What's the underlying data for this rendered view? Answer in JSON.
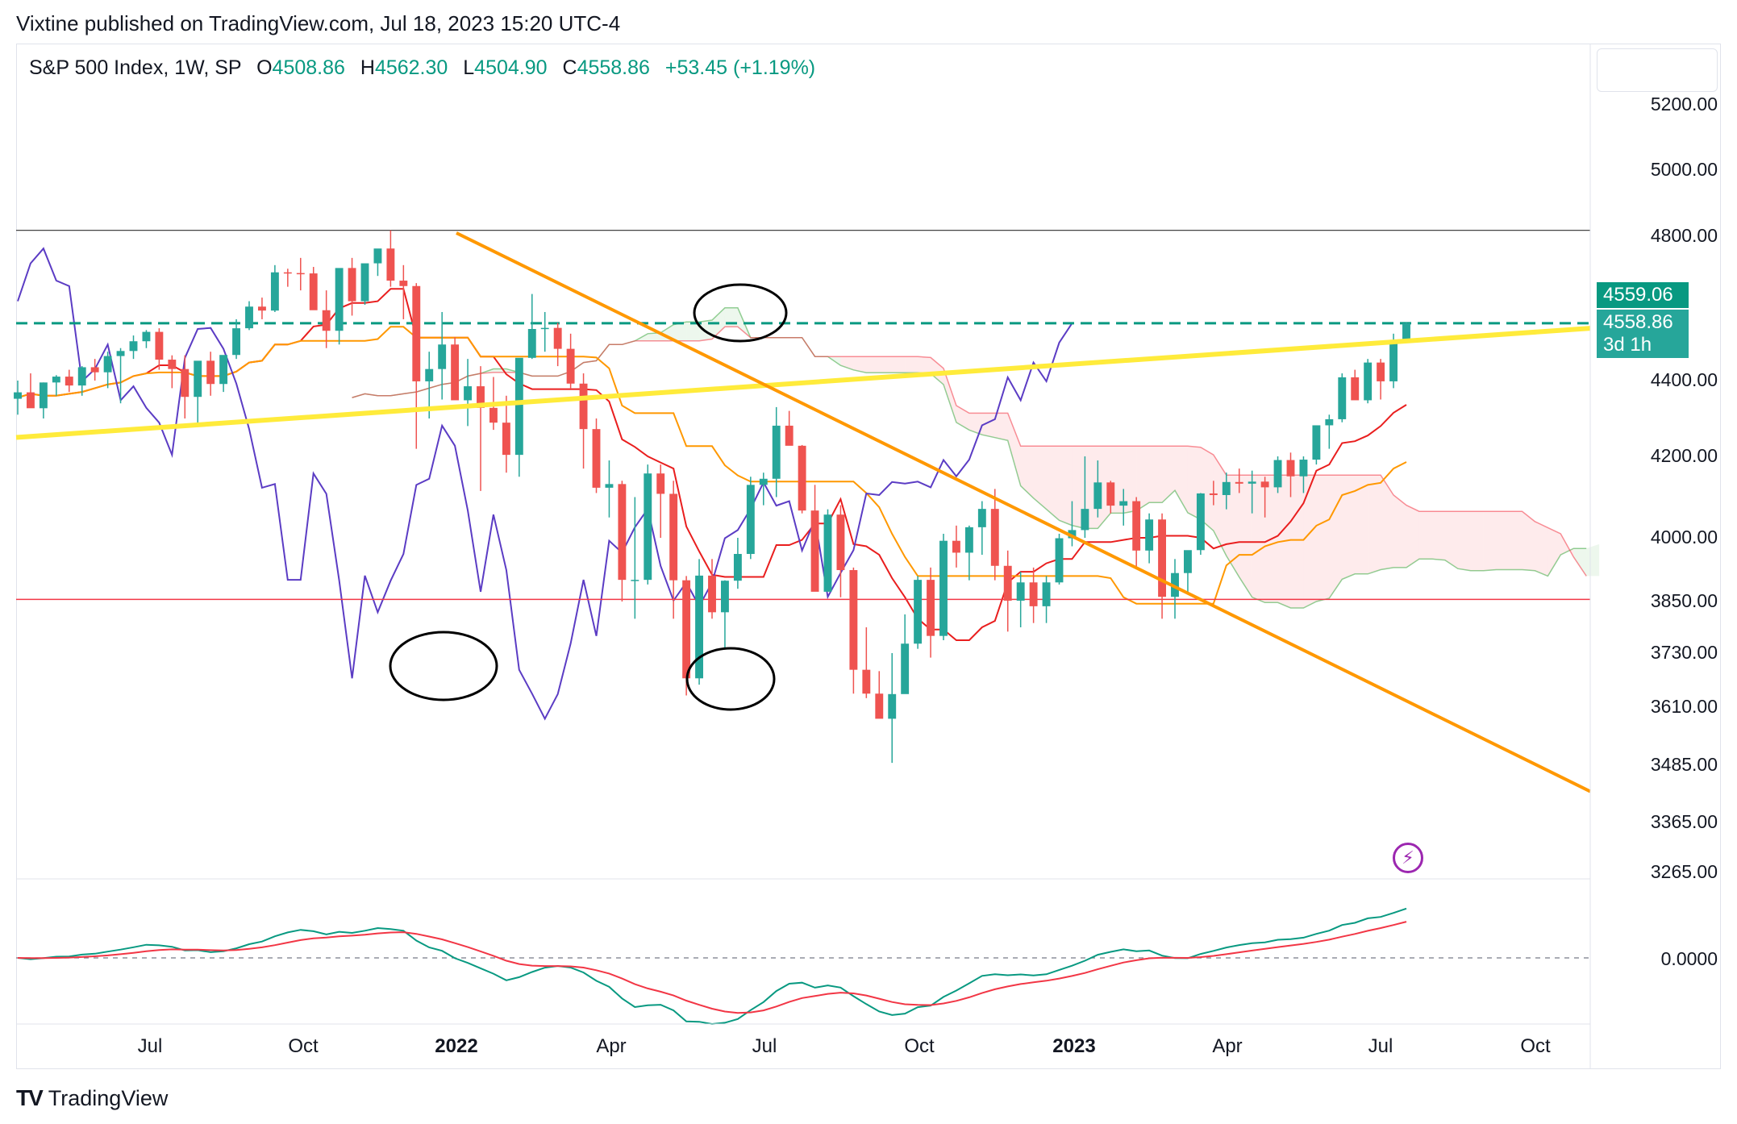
{
  "publisher_line": "Vixtine published on TradingView.com, Jul 18, 2023 15:20 UTC-4",
  "legend": {
    "symbol": "S&P 500 Index, 1W, SP",
    "o_label": "O",
    "o_value": "4508.86",
    "h_label": "H",
    "h_value": "4562.30",
    "l_label": "L",
    "l_value": "4504.90",
    "c_label": "C",
    "c_value": "4558.86",
    "change": "+53.45 (+1.19%)"
  },
  "price_axis": [
    "5200.00",
    "5000.00",
    "4800.00",
    "4400.00",
    "4200.00",
    "4000.00",
    "3850.00",
    "3730.00",
    "3610.00",
    "3485.00",
    "3365.00",
    "3265.00"
  ],
  "price_tags": {
    "high_tag": "4559.06",
    "last_price": "4558.86",
    "countdown": "3d 1h"
  },
  "oscillator_axis": [
    "0.0000"
  ],
  "time_axis": [
    {
      "label": "Jul",
      "bold": false
    },
    {
      "label": "Oct",
      "bold": false
    },
    {
      "label": "2022",
      "bold": true
    },
    {
      "label": "Apr",
      "bold": false
    },
    {
      "label": "Jul",
      "bold": false
    },
    {
      "label": "Oct",
      "bold": false
    },
    {
      "label": "2023",
      "bold": true
    },
    {
      "label": "Apr",
      "bold": false
    },
    {
      "label": "Jul",
      "bold": false
    },
    {
      "label": "Oct",
      "bold": false
    }
  ],
  "brand": "TradingView",
  "colors": {
    "up": "#26a69a",
    "down": "#ef5350",
    "tenkan": "#e91e1e",
    "kijun": "#ff9800",
    "lagging": "#5b3cc4",
    "trend_yellow": "#ffeb3b",
    "trend_orange": "#ff9800",
    "support_red": "#f23645",
    "macd": "#089981",
    "signal": "#f23645"
  },
  "chart_data": {
    "type": "candlestick",
    "timeframe": "1W",
    "price_range": [
      3265,
      5200
    ],
    "anchors": [
      "Jul 2021",
      "Oct 2021",
      "Jan 2022",
      "Apr 2022",
      "Jul 2022",
      "Oct 2022",
      "Jan 2023",
      "Apr 2023",
      "Jul 2023",
      "Oct 2023"
    ],
    "ohlc_weekly_approx": [
      [
        4352,
        4400,
        4310,
        4369
      ],
      [
        4369,
        4420,
        4340,
        4327
      ],
      [
        4327,
        4395,
        4300,
        4395
      ],
      [
        4395,
        4415,
        4360,
        4411
      ],
      [
        4411,
        4430,
        4370,
        4387
      ],
      [
        4387,
        4440,
        4360,
        4437
      ],
      [
        4437,
        4460,
        4400,
        4423
      ],
      [
        4423,
        4480,
        4380,
        4468
      ],
      [
        4468,
        4490,
        4340,
        4482
      ],
      [
        4482,
        4525,
        4460,
        4509
      ],
      [
        4509,
        4540,
        4490,
        4535
      ],
      [
        4535,
        4545,
        4430,
        4458
      ],
      [
        4458,
        4470,
        4380,
        4432
      ],
      [
        4432,
        4470,
        4300,
        4357
      ],
      [
        4357,
        4430,
        4280,
        4455
      ],
      [
        4455,
        4480,
        4360,
        4391
      ],
      [
        4391,
        4470,
        4370,
        4471
      ],
      [
        4471,
        4570,
        4460,
        4545
      ],
      [
        4545,
        4620,
        4540,
        4605
      ],
      [
        4605,
        4630,
        4570,
        4594
      ],
      [
        4594,
        4720,
        4590,
        4700
      ],
      [
        4700,
        4710,
        4660,
        4698
      ],
      [
        4698,
        4740,
        4650,
        4697
      ],
      [
        4697,
        4715,
        4600,
        4595
      ],
      [
        4595,
        4650,
        4490,
        4538
      ],
      [
        4538,
        4670,
        4500,
        4712
      ],
      [
        4712,
        4740,
        4580,
        4620
      ],
      [
        4620,
        4720,
        4610,
        4725
      ],
      [
        4725,
        4750,
        4690,
        4766
      ],
      [
        4766,
        4818,
        4660,
        4677
      ],
      [
        4677,
        4720,
        4570,
        4662
      ],
      [
        4662,
        4670,
        4220,
        4398
      ],
      [
        4398,
        4480,
        4300,
        4432
      ],
      [
        4432,
        4590,
        4350,
        4500
      ],
      [
        4500,
        4520,
        4400,
        4348
      ],
      [
        4348,
        4460,
        4280,
        4385
      ],
      [
        4385,
        4440,
        4115,
        4328
      ],
      [
        4328,
        4410,
        4270,
        4289
      ],
      [
        4289,
        4360,
        4160,
        4204
      ],
      [
        4204,
        4440,
        4150,
        4463
      ],
      [
        4463,
        4640,
        4460,
        4543
      ],
      [
        4543,
        4590,
        4480,
        4546
      ],
      [
        4546,
        4560,
        4440,
        4488
      ],
      [
        4488,
        4530,
        4380,
        4392
      ],
      [
        4392,
        4420,
        4170,
        4272
      ],
      [
        4272,
        4300,
        4110,
        4123
      ],
      [
        4123,
        4190,
        4050,
        4132
      ],
      [
        4132,
        4140,
        3850,
        3901
      ],
      [
        3901,
        4100,
        3810,
        3901
      ],
      [
        3901,
        4180,
        3890,
        4158
      ],
      [
        4158,
        4180,
        4000,
        4108
      ],
      [
        4108,
        4140,
        3810,
        3900
      ],
      [
        3900,
        3910,
        3636,
        3674
      ],
      [
        3674,
        3950,
        3660,
        3911
      ],
      [
        3911,
        3950,
        3810,
        3825
      ],
      [
        3825,
        3900,
        3740,
        3899
      ],
      [
        3899,
        4000,
        3880,
        3962
      ],
      [
        3962,
        4150,
        3950,
        4130
      ],
      [
        4130,
        4160,
        4080,
        4145
      ],
      [
        4145,
        4330,
        4100,
        4281
      ],
      [
        4281,
        4320,
        4260,
        4228
      ],
      [
        4228,
        4230,
        4060,
        4067
      ],
      [
        4067,
        4130,
        3910,
        3873
      ],
      [
        3873,
        4070,
        3880,
        4057
      ],
      [
        4057,
        4080,
        3860,
        3924
      ],
      [
        3924,
        3930,
        3640,
        3693
      ],
      [
        3693,
        3790,
        3630,
        3640
      ],
      [
        3640,
        3690,
        3590,
        3585
      ],
      [
        3585,
        3730,
        3490,
        3639
      ],
      [
        3639,
        3820,
        3670,
        3752
      ],
      [
        3752,
        3910,
        3740,
        3901
      ],
      [
        3901,
        3930,
        3720,
        3770
      ],
      [
        3770,
        4010,
        3760,
        3993
      ],
      [
        3993,
        4030,
        3930,
        3965
      ],
      [
        3965,
        4030,
        3900,
        4026
      ],
      [
        4026,
        4090,
        3960,
        4071
      ],
      [
        4071,
        4120,
        3900,
        3934
      ],
      [
        3934,
        3970,
        3780,
        3852
      ],
      [
        3852,
        3920,
        3790,
        3895
      ],
      [
        3895,
        3930,
        3800,
        3839
      ],
      [
        3839,
        3910,
        3800,
        3895
      ],
      [
        3895,
        4010,
        3890,
        3999
      ],
      [
        3999,
        4090,
        3980,
        4019
      ],
      [
        4019,
        4200,
        4000,
        4071
      ],
      [
        4071,
        4190,
        4050,
        4136
      ],
      [
        4136,
        4140,
        4060,
        4079
      ],
      [
        4079,
        4120,
        4030,
        4090
      ],
      [
        4090,
        4100,
        3930,
        3970
      ],
      [
        3970,
        4060,
        3940,
        4045
      ],
      [
        4045,
        4060,
        3810,
        3861
      ],
      [
        3861,
        3950,
        3810,
        3917
      ],
      [
        3917,
        3960,
        3870,
        3971
      ],
      [
        3971,
        4110,
        3960,
        4109
      ],
      [
        4109,
        4140,
        4080,
        4105
      ],
      [
        4105,
        4160,
        4070,
        4137
      ],
      [
        4137,
        4170,
        4110,
        4133
      ],
      [
        4133,
        4165,
        4060,
        4138
      ],
      [
        4138,
        4150,
        4050,
        4124
      ],
      [
        4124,
        4200,
        4110,
        4191
      ],
      [
        4191,
        4210,
        4100,
        4151
      ],
      [
        4151,
        4200,
        4110,
        4192
      ],
      [
        4192,
        4280,
        4180,
        4282
      ],
      [
        4282,
        4310,
        4220,
        4298
      ],
      [
        4298,
        4420,
        4290,
        4409
      ],
      [
        4409,
        4430,
        4360,
        4348
      ],
      [
        4348,
        4460,
        4340,
        4450
      ],
      [
        4450,
        4460,
        4350,
        4398
      ],
      [
        4398,
        4530,
        4380,
        4505
      ],
      [
        4508.86,
        4562.3,
        4504.9,
        4558.86
      ]
    ],
    "levels": {
      "resistance_dashed": 4559.06,
      "top_grey": 4818,
      "support_red": 3855
    },
    "trendlines": [
      {
        "name": "",
        "from": [
          "2021-06",
          "4250"
        ],
        "to": [
          "2023-10",
          "4545"
        ]
      },
      {
        "name": "",
        "from": [
          "2022-01",
          "4818"
        ],
        "to": [
          "2023-10",
          "3430"
        ]
      }
    ],
    "oscillator": {
      "zero_line": 0,
      "ylabel": "0.0000"
    }
  }
}
